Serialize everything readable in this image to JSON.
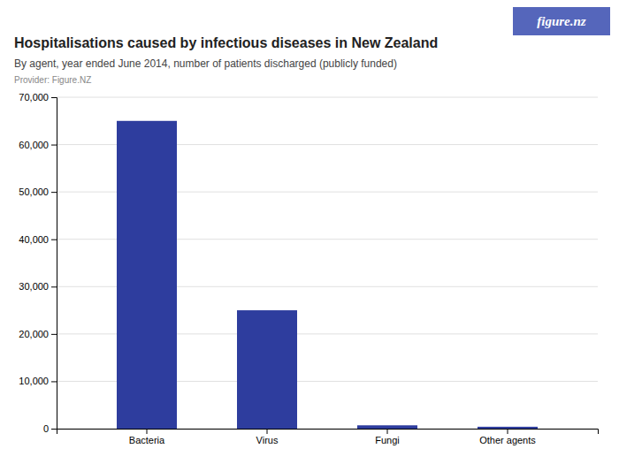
{
  "chart_data": {
    "type": "bar",
    "title": "Hospitalisations caused by infectious diseases in New Zealand",
    "subtitle": "By agent, year ended June 2014, number of patients discharged (publicly funded)",
    "annotations": [
      "Provider: Figure.NZ",
      "figure.nz"
    ],
    "categories": [
      "Bacteria",
      "Virus",
      "Fungi",
      "Other agents"
    ],
    "values": [
      65000,
      25000,
      700,
      400
    ],
    "color": "#2e3d9e",
    "ylim": [
      0,
      70000
    ],
    "yticks": [
      0,
      {
        "value": 10000,
        "label": "10,000"
      },
      {
        "value": 20000,
        "label": "20,000"
      },
      {
        "value": 30000,
        "label": "30,000"
      },
      {
        "value": 40000,
        "label": "40,000"
      },
      {
        "value": 50000,
        "label": "50,000"
      },
      {
        "value": 60000,
        "label": "60,000"
      },
      {
        "value": 70000,
        "label": "70,000"
      }
    ],
    "grid": true
  }
}
